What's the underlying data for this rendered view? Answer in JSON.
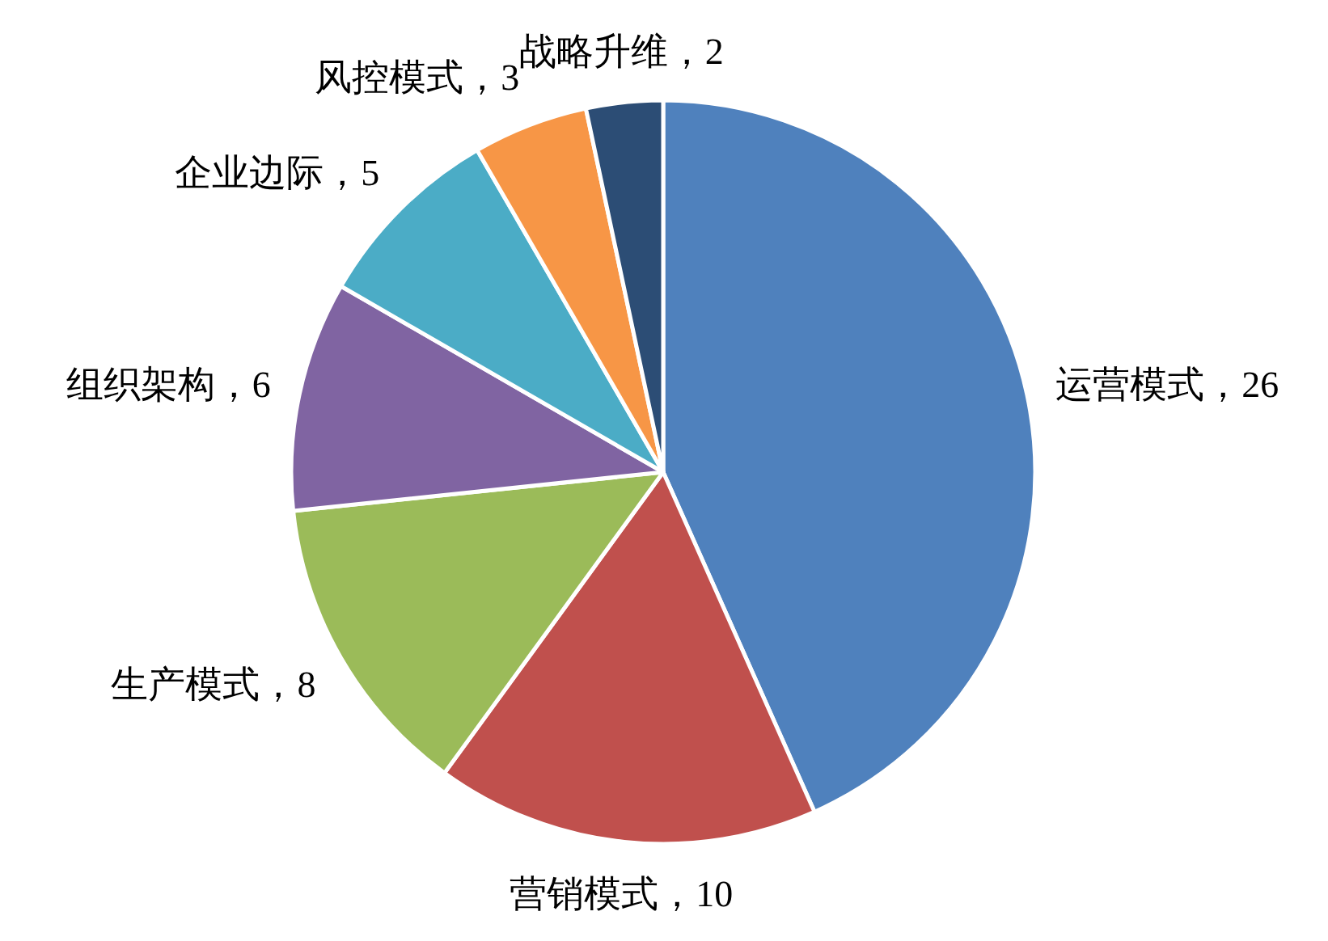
{
  "chart_data": {
    "type": "pie",
    "categories": [
      "运营模式",
      "营销模式",
      "生产模式",
      "组织架构",
      "企业边际",
      "风控模式",
      "战略升维"
    ],
    "values": [
      26,
      10,
      8,
      6,
      5,
      3,
      2
    ],
    "colors": [
      "#4f81bd",
      "#c0504d",
      "#9bbb59",
      "#8064a2",
      "#4bacc6",
      "#f79646",
      "#2c4d75"
    ],
    "value_labels": [
      "，26",
      "，10",
      "，8",
      "，6",
      "，5",
      "，3",
      "，2"
    ]
  }
}
